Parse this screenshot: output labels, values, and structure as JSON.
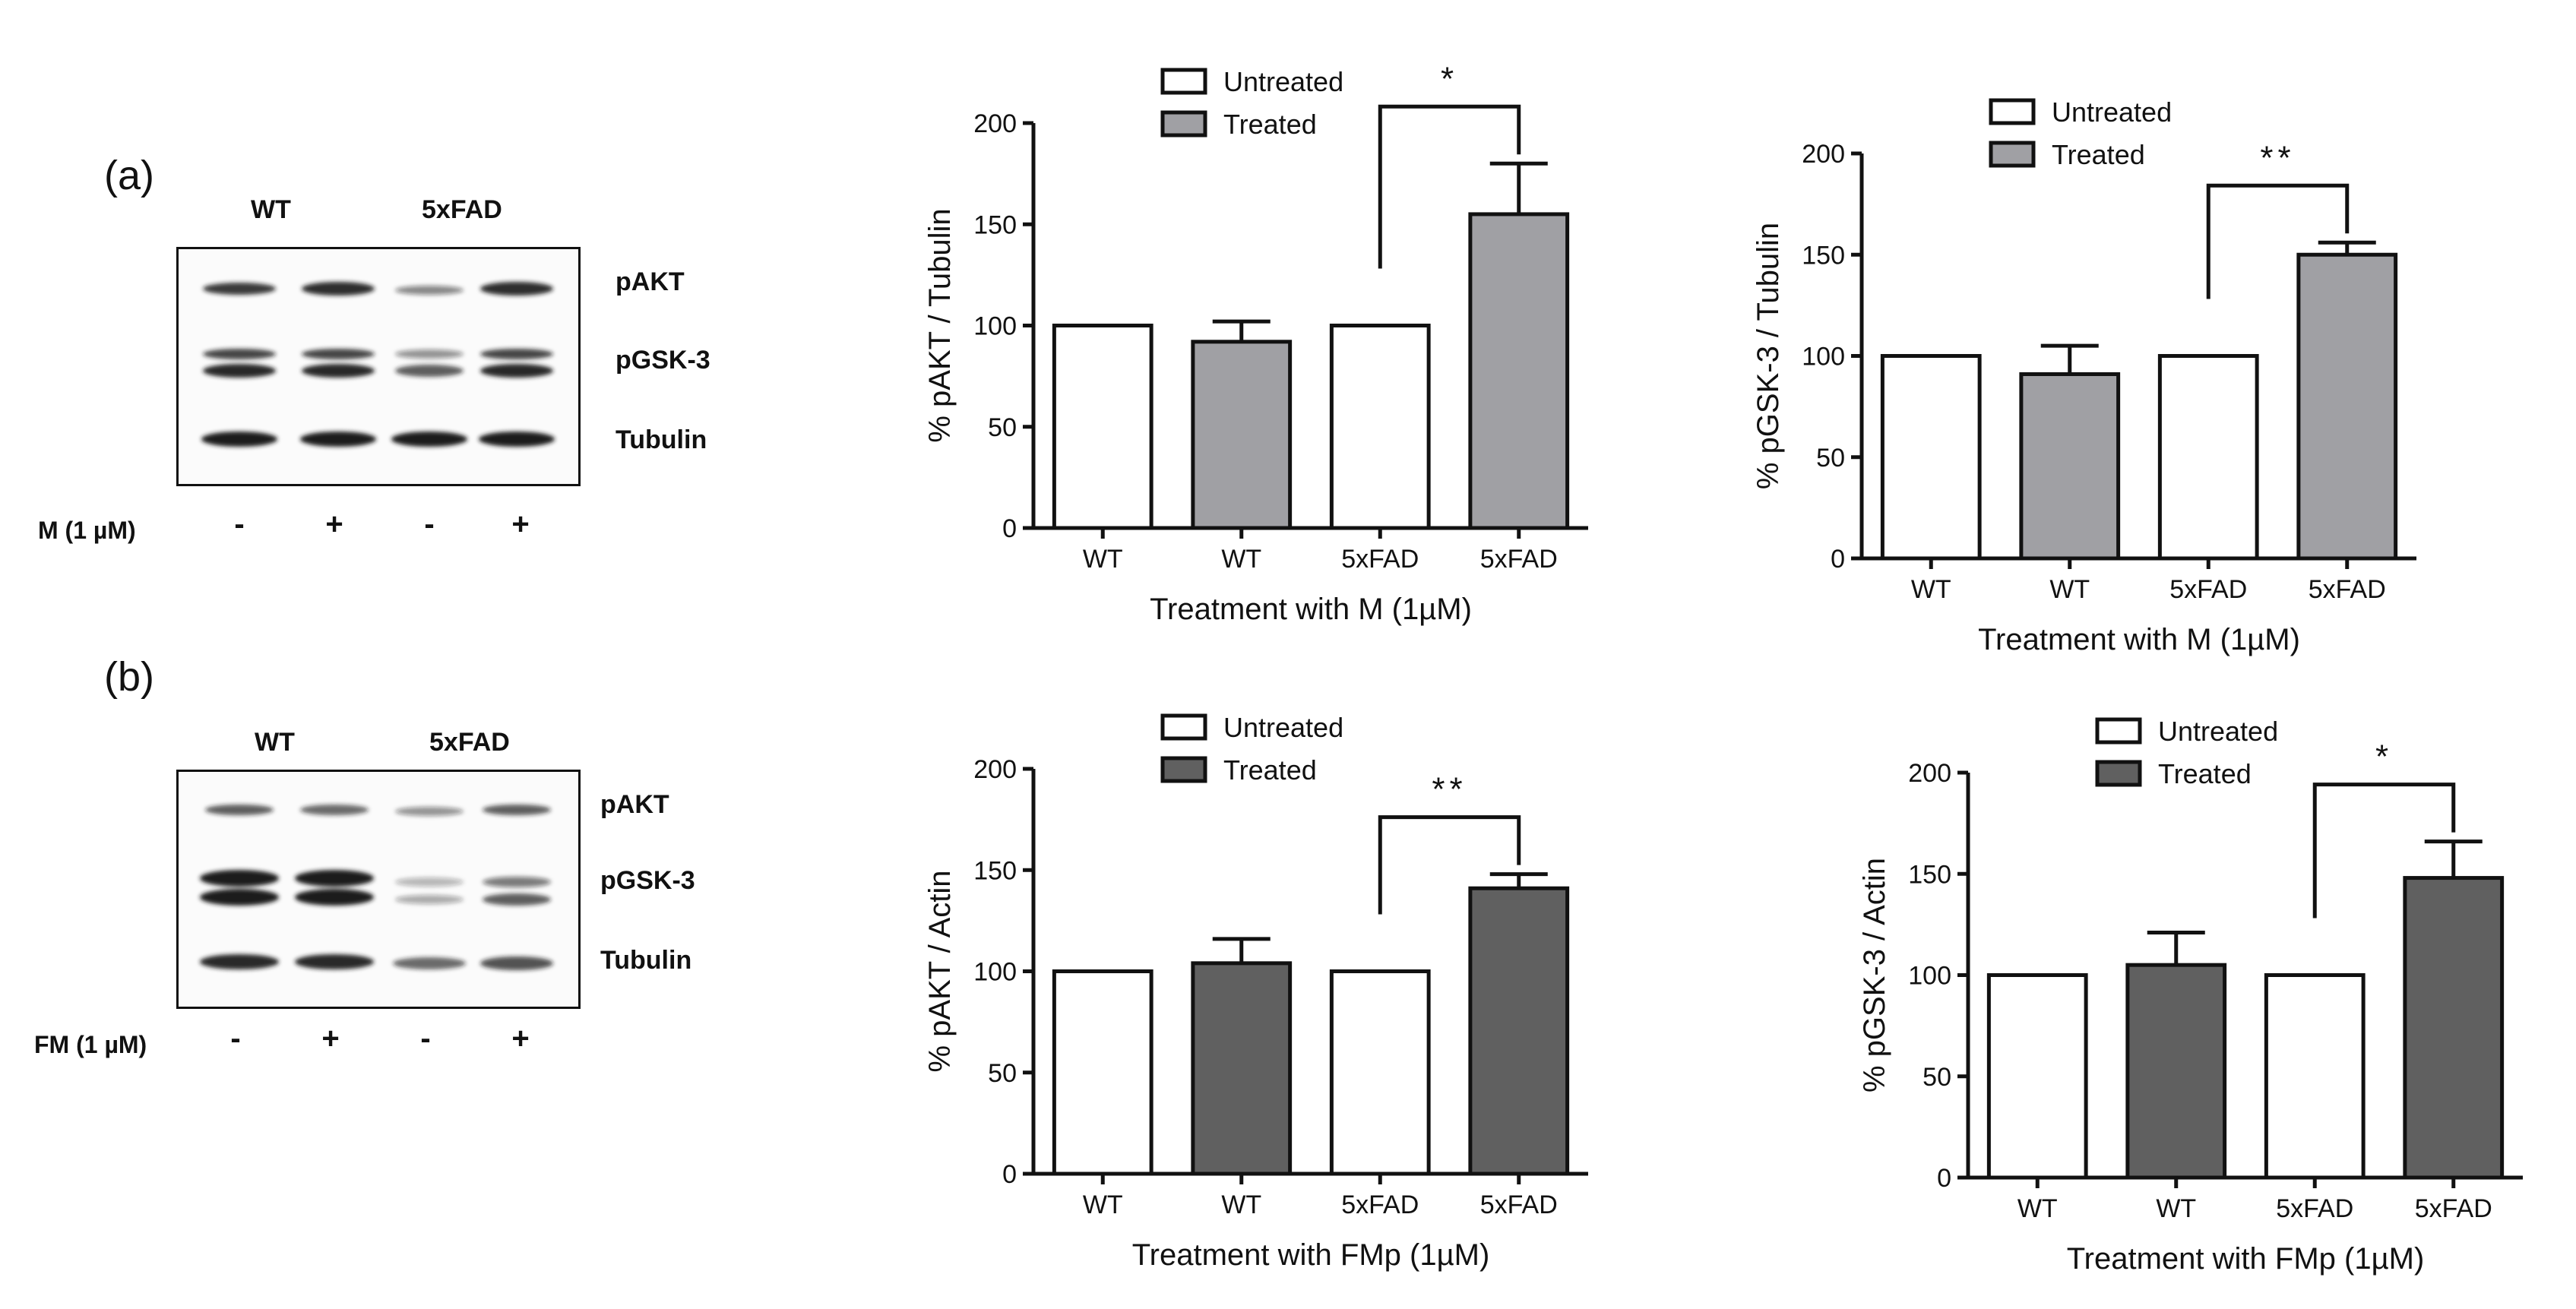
{
  "panels": {
    "a": {
      "label": "(a)",
      "blot": {
        "groups": [
          "WT",
          "5xFAD"
        ],
        "bands": [
          "pAKT",
          "pGSK-3",
          "Tubulin"
        ],
        "treatment_label": "M (1 µM)",
        "signs": [
          "-",
          "+",
          "-",
          "+"
        ]
      }
    },
    "b": {
      "label": "(b)",
      "blot": {
        "groups": [
          "WT",
          "5xFAD"
        ],
        "bands": [
          "pAKT",
          "pGSK-3",
          "Tubulin"
        ],
        "treatment_label": "FM (1 µM)",
        "signs": [
          "-",
          "+",
          "-",
          "+"
        ]
      }
    }
  },
  "colors": {
    "untreated": "#ffffff",
    "treated_M": "#a0a0a4",
    "treated_FM": "#606060",
    "axis": "#111111"
  },
  "chart_data": [
    {
      "id": "a-pakt",
      "type": "bar",
      "categories": [
        "WT",
        "WT",
        "5xFAD",
        "5xFAD"
      ],
      "values": [
        100,
        92,
        100,
        155
      ],
      "errors": [
        0,
        10,
        0,
        25
      ],
      "groups": [
        "Untreated",
        "Treated",
        "Untreated",
        "Treated"
      ],
      "legend": [
        "Untreated",
        "Treated"
      ],
      "treated_color": "#a0a0a4",
      "ylabel": "% pAKT / Tubulin",
      "xlabel": "Treatment with M (1µM)",
      "ylim": [
        0,
        200
      ],
      "yticks": [
        "0",
        "50",
        "100",
        "150",
        "200"
      ],
      "significance": {
        "from": 2,
        "to": 3,
        "label": "*"
      }
    },
    {
      "id": "a-pgsk3",
      "type": "bar",
      "categories": [
        "WT",
        "WT",
        "5xFAD",
        "5xFAD"
      ],
      "values": [
        100,
        91,
        100,
        150
      ],
      "errors": [
        0,
        14,
        0,
        6
      ],
      "groups": [
        "Untreated",
        "Treated",
        "Untreated",
        "Treated"
      ],
      "legend": [
        "Untreated",
        "Treated"
      ],
      "treated_color": "#a0a0a4",
      "ylabel": "% pGSK-3 / Tubulin",
      "xlabel": "Treatment with M (1µM)",
      "ylim": [
        0,
        200
      ],
      "yticks": [
        "0",
        "50",
        "100",
        "150",
        "200"
      ],
      "significance": {
        "from": 2,
        "to": 3,
        "label": "**"
      }
    },
    {
      "id": "b-pakt",
      "type": "bar",
      "categories": [
        "WT",
        "WT",
        "5xFAD",
        "5xFAD"
      ],
      "values": [
        100,
        104,
        100,
        141
      ],
      "errors": [
        0,
        12,
        0,
        7
      ],
      "groups": [
        "Untreated",
        "Treated",
        "Untreated",
        "Treated"
      ],
      "legend": [
        "Untreated",
        "Treated"
      ],
      "treated_color": "#606060",
      "ylabel": "% pAKT / Actin",
      "xlabel": "Treatment with FMp (1µM)",
      "ylim": [
        0,
        200
      ],
      "yticks": [
        "0",
        "50",
        "100",
        "150",
        "200"
      ],
      "significance": {
        "from": 2,
        "to": 3,
        "label": "**"
      }
    },
    {
      "id": "b-pgsk3",
      "type": "bar",
      "categories": [
        "WT",
        "WT",
        "5xFAD",
        "5xFAD"
      ],
      "values": [
        100,
        105,
        100,
        148
      ],
      "errors": [
        0,
        16,
        0,
        18
      ],
      "groups": [
        "Untreated",
        "Treated",
        "Untreated",
        "Treated"
      ],
      "legend": [
        "Untreated",
        "Treated"
      ],
      "treated_color": "#606060",
      "ylabel": "% pGSK-3 / Actin",
      "xlabel": "Treatment with FMp (1µM)",
      "ylim": [
        0,
        200
      ],
      "yticks": [
        "0",
        "50",
        "100",
        "150",
        "200"
      ],
      "significance": {
        "from": 2,
        "to": 3,
        "label": "*"
      }
    }
  ]
}
